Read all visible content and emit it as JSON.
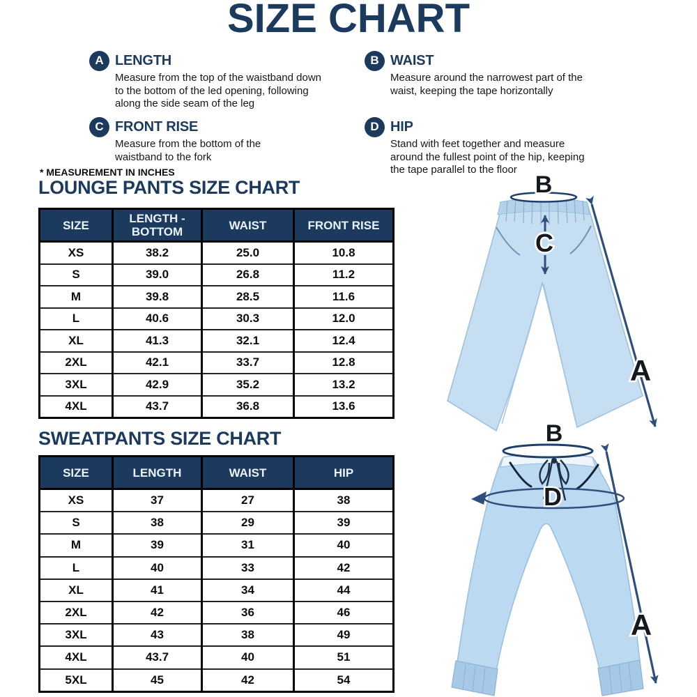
{
  "title": "SIZE CHART",
  "note": "* MEASUREMENT IN INCHES",
  "colors": {
    "navy": "#1b3a5e",
    "arrow_blue": "#2e4e7e",
    "pants_blue": "#c2dcf2",
    "table_header_bg": "#1b3a5e",
    "table_header_text": "#eaf2fb"
  },
  "definitions": [
    {
      "letter": "A",
      "term": "LENGTH",
      "desc": "Measure from the top of the waistband down to the bottom of the led opening, following along the side seam of the leg"
    },
    {
      "letter": "B",
      "term": "WAIST",
      "desc": "Measure around the narrowest part of the waist, keeping the tape horizontally"
    },
    {
      "letter": "C",
      "term": "FRONT RISE",
      "desc": "Measure from the bottom of the waistband to the fork"
    },
    {
      "letter": "D",
      "term": "HIP",
      "desc": "Stand with feet together and measure around the fullest point of the hip, keeping the tape parallel to the floor"
    }
  ],
  "lounge_table": {
    "title": "LOUNGE PANTS SIZE CHART",
    "columns": [
      "SIZE",
      "LENGTH - BOTTOM",
      "WAIST",
      "FRONT RISE"
    ],
    "rows": [
      [
        "XS",
        "38.2",
        "25.0",
        "10.8"
      ],
      [
        "S",
        "39.0",
        "26.8",
        "11.2"
      ],
      [
        "M",
        "39.8",
        "28.5",
        "11.6"
      ],
      [
        "L",
        "40.6",
        "30.3",
        "12.0"
      ],
      [
        "XL",
        "41.3",
        "32.1",
        "12.4"
      ],
      [
        "2XL",
        "42.1",
        "33.7",
        "12.8"
      ],
      [
        "3XL",
        "42.9",
        "35.2",
        "13.2"
      ],
      [
        "4XL",
        "43.7",
        "36.8",
        "13.6"
      ]
    ]
  },
  "sweatpants_table": {
    "title": "SWEATPANTS SIZE CHART",
    "columns": [
      "SIZE",
      "LENGTH",
      "WAIST",
      "HIP"
    ],
    "rows": [
      [
        "XS",
        "37",
        "27",
        "38"
      ],
      [
        "S",
        "38",
        "29",
        "39"
      ],
      [
        "M",
        "39",
        "31",
        "40"
      ],
      [
        "L",
        "40",
        "33",
        "42"
      ],
      [
        "XL",
        "41",
        "34",
        "44"
      ],
      [
        "2XL",
        "42",
        "36",
        "46"
      ],
      [
        "3XL",
        "43",
        "38",
        "49"
      ],
      [
        "4XL",
        "43.7",
        "40",
        "51"
      ],
      [
        "5XL",
        "45",
        "42",
        "54"
      ]
    ]
  },
  "illustrations": {
    "lounge_pants": {
      "labels": {
        "waist": "B",
        "front_rise": "C",
        "length": "A"
      }
    },
    "sweatpants": {
      "labels": {
        "waist": "B",
        "hip": "D",
        "length": "A"
      }
    }
  }
}
